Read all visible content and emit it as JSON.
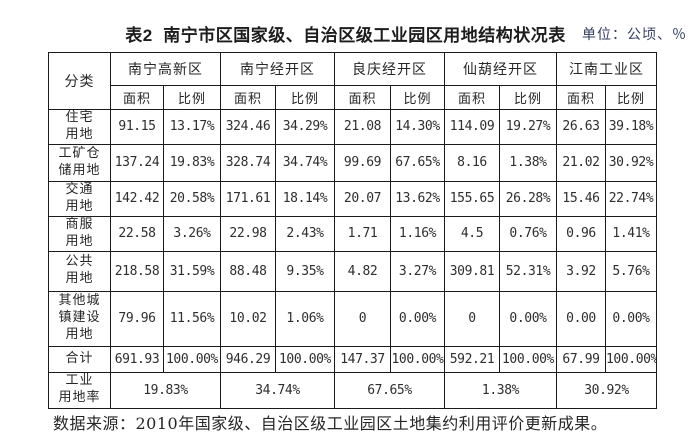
{
  "page": {
    "title": "表2  南宁市区国家级、自治区级工业园区用地结构状况表",
    "unit_label": "单位：公顷、％",
    "source_note": "数据来源：2010年国家级、自治区级工业园区土地集约利用评价更新成果。"
  },
  "colors": {
    "title_text": "#1c1c1c",
    "unit_text": "#333c63",
    "body_text": "#2a2a2a",
    "border": "#1b1b1b",
    "background": "#ffffff"
  },
  "table": {
    "category_header": "分类",
    "groups": [
      "南宁高新区",
      "南宁经开区",
      "良庆经开区",
      "仙葫经开区",
      "江南工业区"
    ],
    "sub_headers": {
      "area": "面积",
      "ratio": "比例"
    },
    "rows": [
      {
        "label": "住宅\n用地",
        "values": [
          "91.15",
          "13.17%",
          "324.46",
          "34.29%",
          "21.08",
          "14.30%",
          "114.09",
          "19.27%",
          "26.63",
          "39.18%"
        ]
      },
      {
        "label": "工矿仓\n储用地",
        "values": [
          "137.24",
          "19.83%",
          "328.74",
          "34.74%",
          "99.69",
          "67.65%",
          "8.16",
          "1.38%",
          "21.02",
          "30.92%"
        ]
      },
      {
        "label": "交通\n用地",
        "values": [
          "142.42",
          "20.58%",
          "171.61",
          "18.14%",
          "20.07",
          "13.62%",
          "155.65",
          "26.28%",
          "15.46",
          "22.74%"
        ]
      },
      {
        "label": "商服\n用地",
        "values": [
          "22.58",
          "3.26%",
          "22.98",
          "2.43%",
          "1.71",
          "1.16%",
          "4.5",
          "0.76%",
          "0.96",
          "1.41%"
        ]
      },
      {
        "label": "公共\n用地",
        "values": [
          "218.58",
          "31.59%",
          "88.48",
          "9.35%",
          "4.82",
          "3.27%",
          "309.81",
          "52.31%",
          "3.92",
          "5.76%"
        ]
      },
      {
        "label": "其他城\n镇建设\n用地",
        "values": [
          "79.96",
          "11.56%",
          "10.02",
          "1.06%",
          "0",
          "0.00%",
          "0",
          "0.00%",
          "0.00",
          "0.00%"
        ]
      },
      {
        "label": "合计",
        "values": [
          "691.93",
          "100.00%",
          "946.29",
          "100.00%",
          "147.37",
          "100.00%",
          "592.21",
          "100.00%",
          "67.99",
          "100.00%"
        ]
      }
    ],
    "industrial_rate_row": {
      "label": "工业\n用地率",
      "values": [
        "19.83%",
        "34.74%",
        "67.65%",
        "1.38%",
        "30.92%"
      ]
    }
  }
}
